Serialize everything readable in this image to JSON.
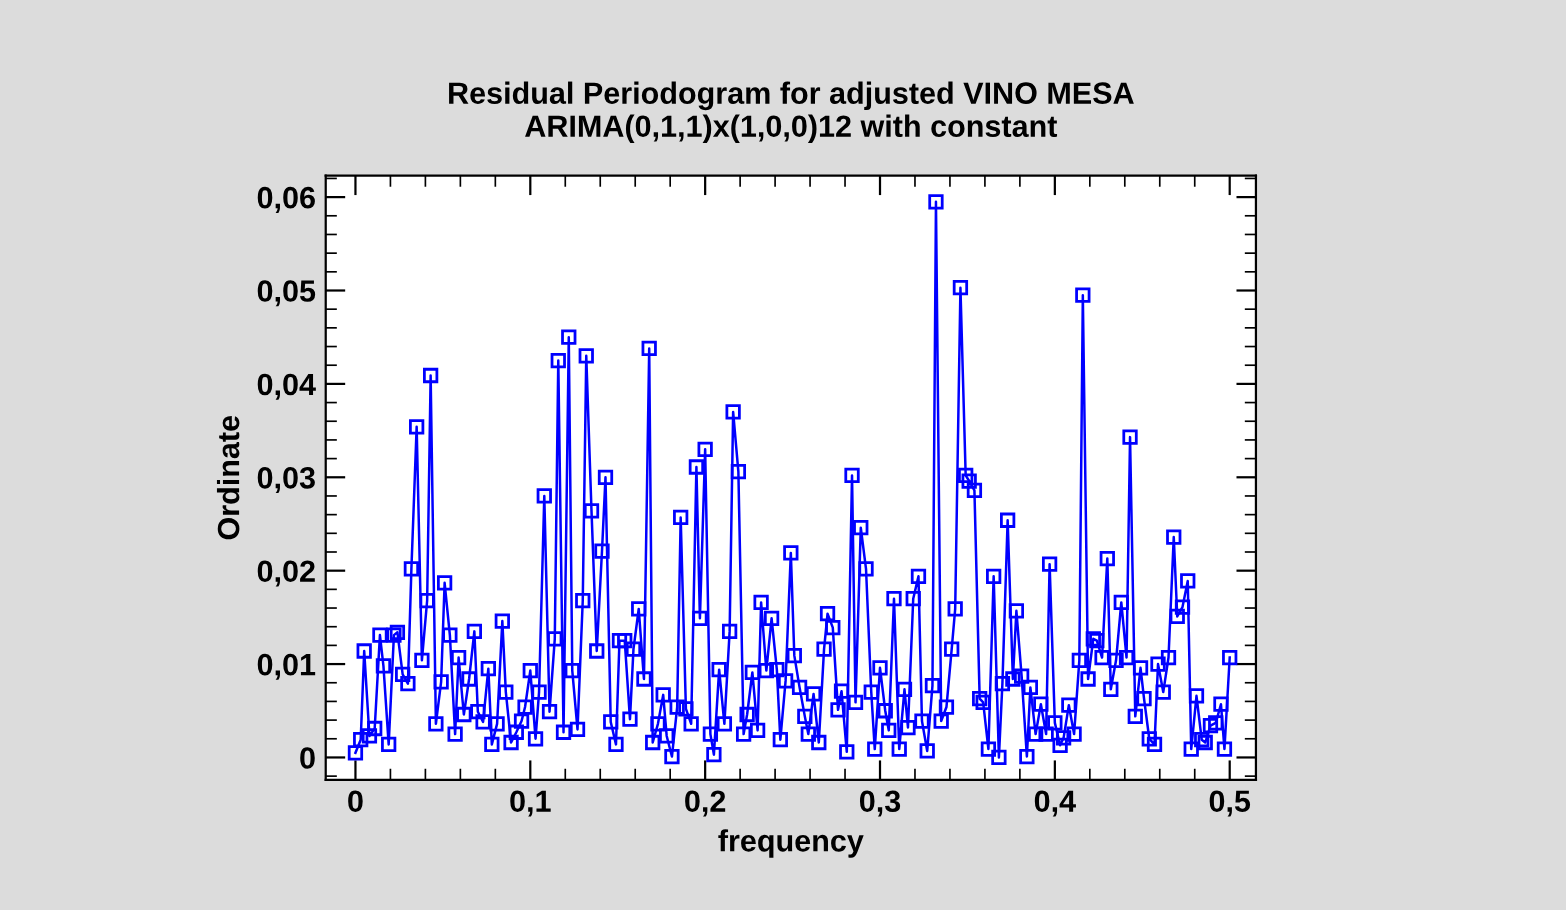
{
  "chart_data": {
    "type": "line",
    "title": "Residual Periodogram for adjusted VINO MESA\nARIMA(0,1,1)x(1,0,0)12 with constant",
    "xlabel": "frequency",
    "ylabel": "Ordinate",
    "x": [
      0,
      0.003,
      0.005,
      0.008,
      0.011,
      0.014,
      0.016,
      0.019,
      0.022,
      0.024,
      0.027,
      0.03,
      0.032,
      0.035,
      0.038,
      0.041,
      0.043,
      0.046,
      0.049,
      0.051,
      0.054,
      0.057,
      0.059,
      0.062,
      0.065,
      0.068,
      0.07,
      0.073,
      0.076,
      0.078,
      0.081,
      0.084,
      0.086,
      0.089,
      0.092,
      0.095,
      0.097,
      0.1,
      0.103,
      0.105,
      0.108,
      0.111,
      0.114,
      0.116,
      0.119,
      0.122,
      0.124,
      0.127,
      0.13,
      0.132,
      0.135,
      0.138,
      0.141,
      0.143,
      0.146,
      0.149,
      0.151,
      0.154,
      0.157,
      0.159,
      0.162,
      0.165,
      0.168,
      0.17,
      0.173,
      0.176,
      0.178,
      0.181,
      0.184,
      0.186,
      0.189,
      0.192,
      0.195,
      0.197,
      0.2,
      0.203,
      0.205,
      0.208,
      0.211,
      0.214,
      0.216,
      0.219,
      0.222,
      0.224,
      0.227,
      0.23,
      0.232,
      0.235,
      0.238,
      0.241,
      0.243,
      0.246,
      0.249,
      0.251,
      0.254,
      0.257,
      0.259,
      0.262,
      0.265,
      0.268,
      0.27,
      0.273,
      0.276,
      0.278,
      0.281,
      0.284,
      0.286,
      0.289,
      0.292,
      0.295,
      0.297,
      0.3,
      0.303,
      0.305,
      0.308,
      0.311,
      0.314,
      0.316,
      0.319,
      0.322,
      0.324,
      0.327,
      0.33,
      0.332,
      0.335,
      0.338,
      0.341,
      0.343,
      0.346,
      0.349,
      0.351,
      0.354,
      0.357,
      0.359,
      0.362,
      0.365,
      0.368,
      0.37,
      0.373,
      0.376,
      0.378,
      0.381,
      0.384,
      0.386,
      0.389,
      0.392,
      0.395,
      0.397,
      0.4,
      0.403,
      0.405,
      0.408,
      0.411,
      0.414,
      0.416,
      0.419,
      0.422,
      0.424,
      0.427,
      0.43,
      0.432,
      0.435,
      0.438,
      0.441,
      0.443,
      0.446,
      0.449,
      0.451,
      0.454,
      0.457,
      0.459,
      0.462,
      0.465,
      0.468,
      0.47,
      0.473,
      0.476,
      0.478,
      0.481,
      0.484,
      0.486,
      0.489,
      0.492,
      0.495,
      0.497,
      0.5
    ],
    "series": [
      {
        "color": "#0000ff",
        "values": [
          0.0005,
          0.0019,
          0.0114,
          0.0023,
          0.0031,
          0.0131,
          0.0098,
          0.0014,
          0.0131,
          0.0134,
          0.0089,
          0.0079,
          0.0202,
          0.0354,
          0.0104,
          0.0168,
          0.0409,
          0.0036,
          0.0081,
          0.0187,
          0.0131,
          0.0025,
          0.0107,
          0.0046,
          0.0084,
          0.0135,
          0.0049,
          0.0038,
          0.0095,
          0.0014,
          0.0036,
          0.0146,
          0.007,
          0.0016,
          0.0027,
          0.0039,
          0.0054,
          0.0093,
          0.002,
          0.007,
          0.028,
          0.0049,
          0.0127,
          0.0425,
          0.0027,
          0.045,
          0.0093,
          0.003,
          0.0168,
          0.043,
          0.0264,
          0.0114,
          0.0221,
          0.03,
          0.0038,
          0.0014,
          0.0125,
          0.0125,
          0.0041,
          0.0116,
          0.0159,
          0.0084,
          0.0438,
          0.0016,
          0.0036,
          0.0067,
          0.0023,
          0.0001,
          0.0054,
          0.0257,
          0.0052,
          0.0036,
          0.0311,
          0.0149,
          0.033,
          0.0025,
          0.0003,
          0.0094,
          0.0036,
          0.0135,
          0.037,
          0.0306,
          0.0025,
          0.0046,
          0.0091,
          0.0029,
          0.0166,
          0.0093,
          0.0149,
          0.0094,
          0.0019,
          0.0082,
          0.0219,
          0.0109,
          0.0075,
          0.0044,
          0.0025,
          0.0068,
          0.0016,
          0.0116,
          0.0154,
          0.0139,
          0.0051,
          0.0071,
          0.0006,
          0.0302,
          0.0059,
          0.0246,
          0.0202,
          0.007,
          0.0009,
          0.0096,
          0.005,
          0.0029,
          0.017,
          0.0009,
          0.0073,
          0.0032,
          0.017,
          0.0194,
          0.0039,
          0.0007,
          0.0077,
          0.0595,
          0.0039,
          0.0054,
          0.0116,
          0.0159,
          0.0503,
          0.0302,
          0.0296,
          0.0286,
          0.0063,
          0.0059,
          0.0009,
          0.0194,
          0.0,
          0.0079,
          0.0254,
          0.0084,
          0.0157,
          0.0087,
          0.0001,
          0.0075,
          0.0025,
          0.0057,
          0.0025,
          0.0207,
          0.0037,
          0.0013,
          0.0021,
          0.0056,
          0.0025,
          0.0104,
          0.0495,
          0.0084,
          0.0127,
          0.0125,
          0.0107,
          0.0213,
          0.0073,
          0.0104,
          0.0166,
          0.0107,
          0.0343,
          0.0044,
          0.0096,
          0.0063,
          0.002,
          0.0014,
          0.01,
          0.007,
          0.0107,
          0.0236,
          0.0151,
          0.0161,
          0.0189,
          0.0009,
          0.0066,
          0.0019,
          0.0016,
          0.0034,
          0.0037,
          0.0057,
          0.0009,
          0.0107
        ]
      }
    ],
    "xlim": [
      -0.017,
      0.515
    ],
    "xticks": [
      {
        "value": 0,
        "label": "0"
      },
      {
        "value": 0.1,
        "label": "0,1"
      },
      {
        "value": 0.2,
        "label": "0,2"
      },
      {
        "value": 0.3,
        "label": "0,3"
      },
      {
        "value": 0.4,
        "label": "0,4"
      },
      {
        "value": 0.5,
        "label": "0,5"
      }
    ],
    "ylim": [
      -0.0024,
      0.0623
    ],
    "yticks": [
      {
        "value": 0,
        "label": "0"
      },
      {
        "value": 0.01,
        "label": "0,01"
      },
      {
        "value": 0.02,
        "label": "0,02"
      },
      {
        "value": 0.03,
        "label": "0,03"
      },
      {
        "value": 0.04,
        "label": "0,04"
      },
      {
        "value": 0.05,
        "label": "0,05"
      },
      {
        "value": 0.06,
        "label": "0,06"
      }
    ],
    "marker": "square",
    "line_style": "solid",
    "grid": false,
    "legend": false
  }
}
